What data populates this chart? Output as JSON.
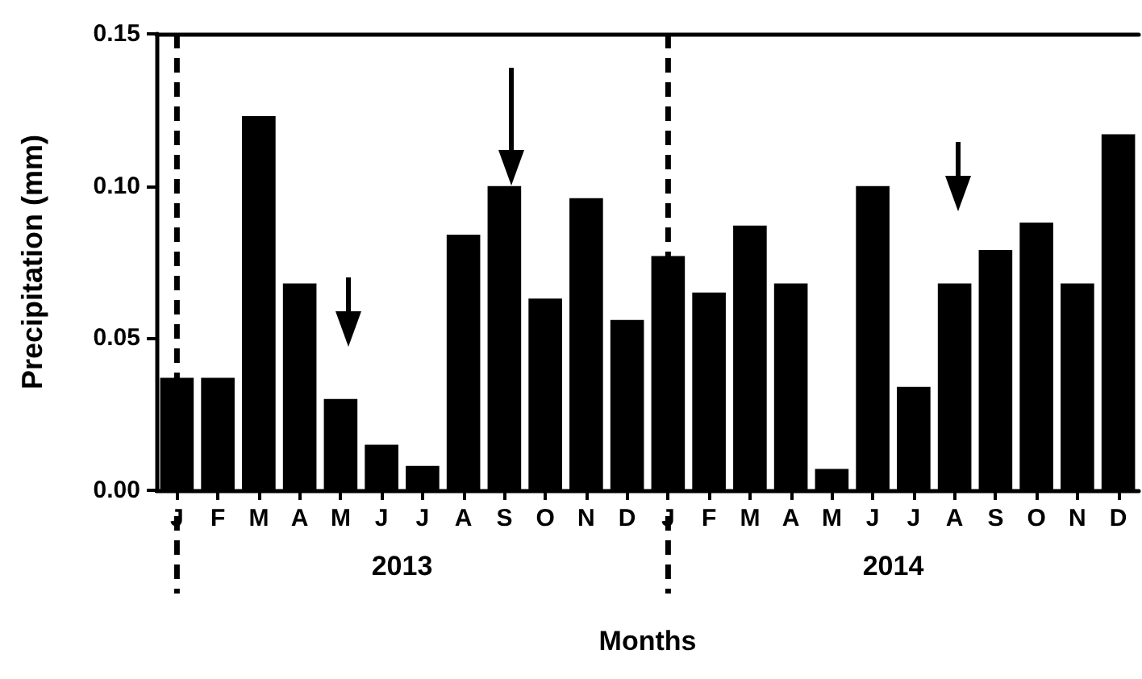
{
  "chart_data": {
    "type": "bar",
    "xlabel": "Months",
    "ylabel": "Precipitation (mm)",
    "categories": [
      "J",
      "F",
      "M",
      "A",
      "M",
      "J",
      "J",
      "A",
      "S",
      "O",
      "N",
      "D",
      "J",
      "F",
      "M",
      "A",
      "M",
      "J",
      "J",
      "A",
      "S",
      "O",
      "N",
      "D"
    ],
    "values": [
      0.037,
      0.037,
      0.123,
      0.068,
      0.03,
      0.015,
      0.008,
      0.084,
      0.1,
      0.063,
      0.096,
      0.056,
      0.077,
      0.065,
      0.087,
      0.068,
      0.007,
      0.1,
      0.034,
      0.068,
      0.079,
      0.088,
      0.068,
      0.117
    ],
    "color": "#000000",
    "ylim": [
      0,
      0.15
    ],
    "yticks": [
      {
        "value": 0,
        "label": "0.00"
      },
      {
        "value": 0.05,
        "label": "0.05"
      },
      {
        "value": 0.1,
        "label": "0.10"
      },
      {
        "value": 0.15,
        "label": "0.15"
      }
    ],
    "annotations": [
      "2013",
      "2014"
    ]
  }
}
